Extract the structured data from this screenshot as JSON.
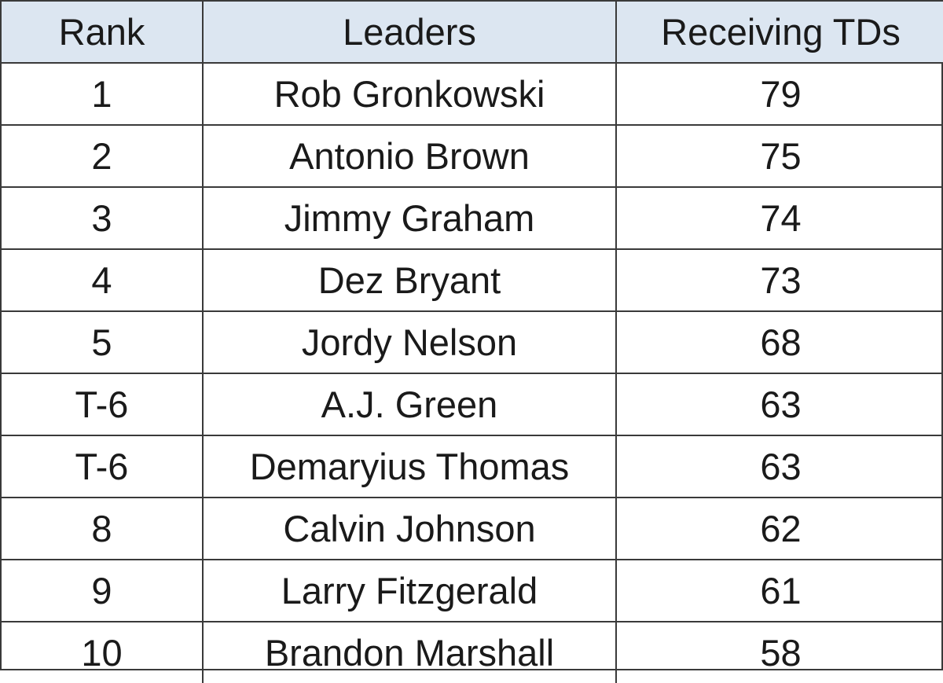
{
  "table": {
    "headers": [
      "Rank",
      "Leaders",
      "Receiving TDs"
    ],
    "rows": [
      [
        "1",
        "Rob Gronkowski",
        79
      ],
      [
        "2",
        "Antonio Brown",
        75
      ],
      [
        "3",
        "Jimmy Graham",
        74
      ],
      [
        "4",
        "Dez Bryant",
        73
      ],
      [
        "5",
        "Jordy Nelson",
        68
      ],
      [
        "T-6",
        "A.J. Green",
        63
      ],
      [
        "T-6",
        "Demaryius Thomas",
        63
      ],
      [
        "8",
        "Calvin Johnson",
        62
      ],
      [
        "9",
        "Larry Fitzgerald",
        61
      ],
      [
        "10",
        "Brandon Marshall",
        58
      ]
    ]
  }
}
